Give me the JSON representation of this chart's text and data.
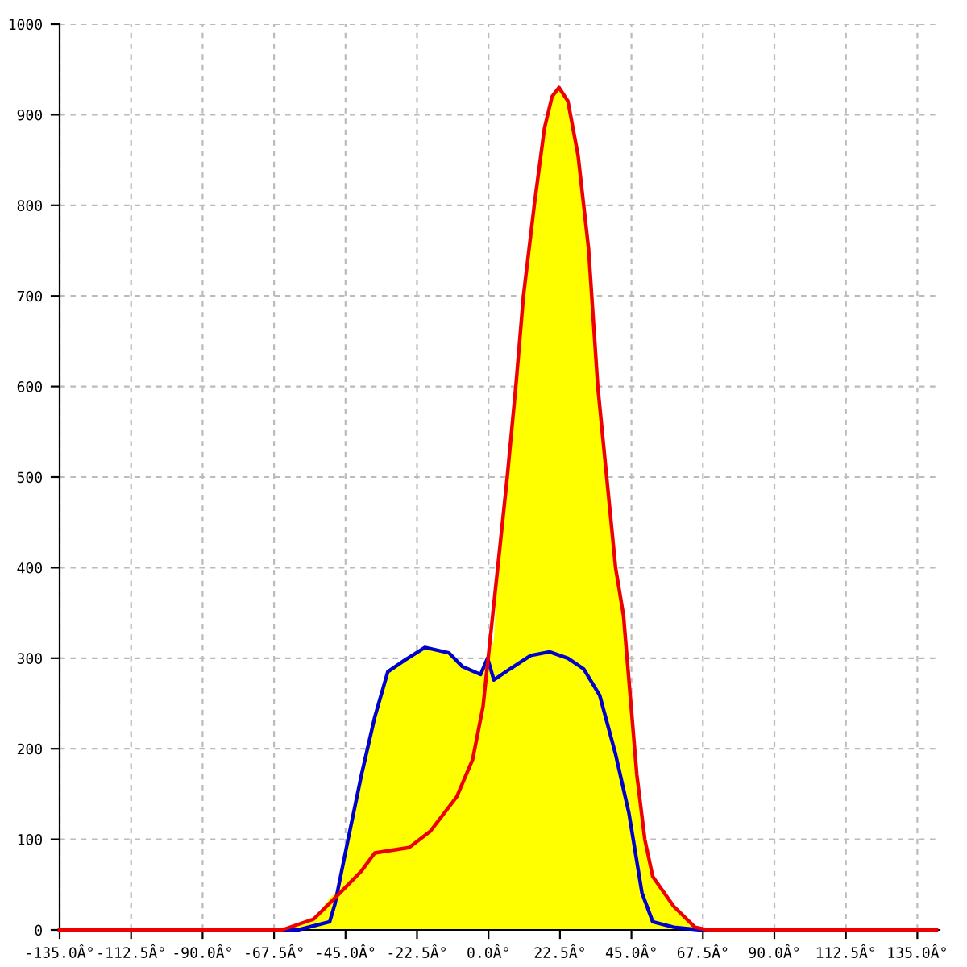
{
  "chart_data": {
    "type": "line",
    "xlim": [
      -135,
      142
    ],
    "ylim": [
      0,
      1000
    ],
    "xticks": [
      {
        "value": -135,
        "label": "-135.0Â°"
      },
      {
        "value": -112.5,
        "label": "-112.5Â°"
      },
      {
        "value": -90,
        "label": "-90.0Â°"
      },
      {
        "value": -67.5,
        "label": "-67.5Â°"
      },
      {
        "value": -45,
        "label": "-45.0Â°"
      },
      {
        "value": -22.5,
        "label": "-22.5Â°"
      },
      {
        "value": 0,
        "label": "0.0Â°"
      },
      {
        "value": 22.5,
        "label": "22.5Â°"
      },
      {
        "value": 45,
        "label": "45.0Â°"
      },
      {
        "value": 67.5,
        "label": "67.5Â°"
      },
      {
        "value": 90,
        "label": "90.0Â°"
      },
      {
        "value": 112.5,
        "label": "112.5Â°"
      },
      {
        "value": 135,
        "label": "135.0Â°"
      }
    ],
    "yticks": [
      0,
      100,
      200,
      300,
      400,
      500,
      600,
      700,
      800,
      900,
      1000
    ],
    "grid": true,
    "line_style": "solid",
    "marker": "none",
    "series": [
      {
        "type": "area",
        "color": "#ffff00",
        "x": [
          -135,
          -65,
          -55,
          -50,
          -47,
          -44.2,
          -40,
          -35.8,
          -31.7,
          -26.7,
          -20,
          -12.5,
          -8.3,
          -2.5,
          -0.3,
          1.7,
          2.9,
          5.9,
          8.6,
          11,
          14.4,
          17.6,
          20,
          22.2,
          25,
          28.2,
          31.5,
          34.4,
          37.2,
          40,
          42.5,
          46.7,
          49.2,
          51.7,
          58.3,
          65,
          69,
          142
        ],
        "values": [
          0,
          0,
          12,
          35,
          45,
          100,
          171,
          235,
          285,
          297,
          312,
          306,
          291,
          282,
          300,
          320,
          400,
          500,
          600,
          700,
          800,
          885,
          920,
          930,
          915,
          855,
          752,
          600,
          500,
          400,
          347,
          171,
          100,
          59,
          26,
          3,
          0,
          0
        ]
      },
      {
        "color": "#0000cc",
        "x": [
          -135,
          -60,
          -50,
          -48.3,
          -44.2,
          -40,
          -35.8,
          -31.7,
          -26.7,
          -20,
          -12.5,
          -8.3,
          -2.5,
          -0.3,
          1.7,
          6.7,
          13.3,
          19.2,
          25,
          30,
          35,
          40,
          44.2,
          48.3,
          51.7,
          58.3,
          66.7,
          135
        ],
        "values": [
          0,
          0,
          9,
          29,
          100,
          171,
          235,
          285,
          297,
          312,
          306,
          291,
          282,
          300,
          276,
          288,
          303,
          307,
          300,
          288,
          259,
          194,
          129,
          41,
          9,
          3,
          0,
          0
        ]
      },
      {
        "color": "#ee0000",
        "x": [
          -135,
          -65,
          -55,
          -46.7,
          -40,
          -35.8,
          -25,
          -18.3,
          -10,
          -5,
          -1.7,
          2.9,
          5.9,
          8.6,
          11,
          14.4,
          17.6,
          20,
          22.2,
          25,
          28.2,
          31.5,
          34.4,
          37.2,
          40,
          42.5,
          46.7,
          49.2,
          51.7,
          58.3,
          65,
          69,
          141
        ],
        "values": [
          0,
          0,
          12,
          41,
          65,
          85,
          91,
          109,
          147,
          188,
          247,
          400,
          500,
          600,
          700,
          800,
          885,
          920,
          930,
          915,
          855,
          752,
          600,
          500,
          400,
          347,
          171,
          100,
          59,
          26,
          3,
          0,
          0
        ]
      }
    ]
  }
}
